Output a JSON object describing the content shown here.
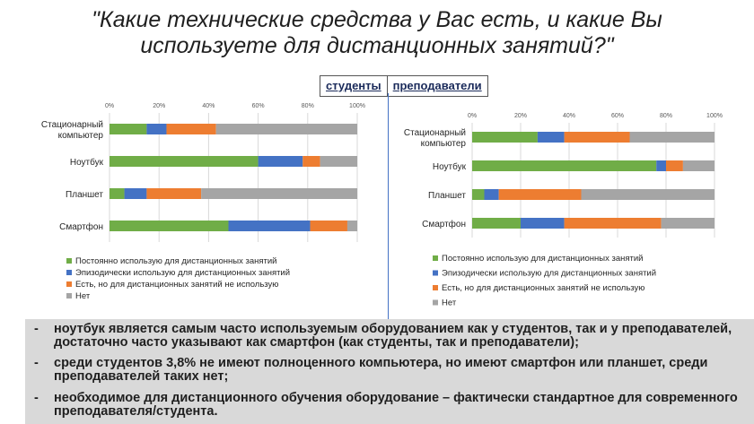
{
  "title_line1": "\"Какие технические средства у Вас есть, и какие Вы",
  "title_line2": "используете для дистанционных занятий?\"",
  "header": {
    "students": "студенты",
    "teachers": "преподаватели"
  },
  "colors": {
    "constant": "#70ad47",
    "episodic": "#4472c4",
    "have_not_use": "#ed7d31",
    "none": "#a5a5a5"
  },
  "chart_data": [
    {
      "type": "bar",
      "orientation": "horizontal",
      "stacked": true,
      "group": "студенты",
      "categories": [
        "Стационарный компьютер",
        "Ноутбук",
        "Планшет",
        "Смартфон"
      ],
      "xticks": [
        "0%",
        "20%",
        "40%",
        "60%",
        "80%",
        "100%"
      ],
      "xlim": [
        0,
        100
      ],
      "series": [
        {
          "name": "Постоянно использую для дистанционных занятий",
          "values": [
            15,
            60,
            6,
            48
          ]
        },
        {
          "name": "Эпизодически использую для дистанционных занятий",
          "values": [
            8,
            18,
            9,
            33
          ]
        },
        {
          "name": "Есть, но для дистанционных занятий не использую",
          "values": [
            20,
            7,
            22,
            15
          ]
        },
        {
          "name": "Нет",
          "values": [
            57,
            15,
            63,
            4
          ]
        }
      ],
      "legend": "bottom",
      "grid": true
    },
    {
      "type": "bar",
      "orientation": "horizontal",
      "stacked": true,
      "group": "преподаватели",
      "categories": [
        "Стационарный компьютер",
        "Ноутбук",
        "Планшет",
        "Смартфон"
      ],
      "xticks": [
        "0%",
        "20%",
        "40%",
        "60%",
        "80%",
        "100%"
      ],
      "xlim": [
        0,
        100
      ],
      "series": [
        {
          "name": "Постоянно использую для дистанционных занятий",
          "values": [
            27,
            76,
            5,
            20
          ]
        },
        {
          "name": "Эпизодически использую для дистанционных занятий",
          "values": [
            11,
            4,
            6,
            18
          ]
        },
        {
          "name": "Есть, но для дистанционных занятий не использую",
          "values": [
            27,
            7,
            34,
            40
          ]
        },
        {
          "name": "Нет",
          "values": [
            35,
            13,
            55,
            22
          ]
        }
      ],
      "legend": "bottom",
      "grid": true
    }
  ],
  "notes": [
    "ноутбук является самым часто используемым оборудованием как у студентов, так и у преподавателей, достаточно часто указывают как смартфон (как студенты, так и преподаватели);",
    "среди студентов 3,8% не имеют полноценного компьютера, но имеют смартфон или планшет, среди преподавателей таких нет;",
    "необходимое для дистанционного обучения оборудование – фактически стандартное для современного преподавателя/студента."
  ],
  "note_dash": "-"
}
